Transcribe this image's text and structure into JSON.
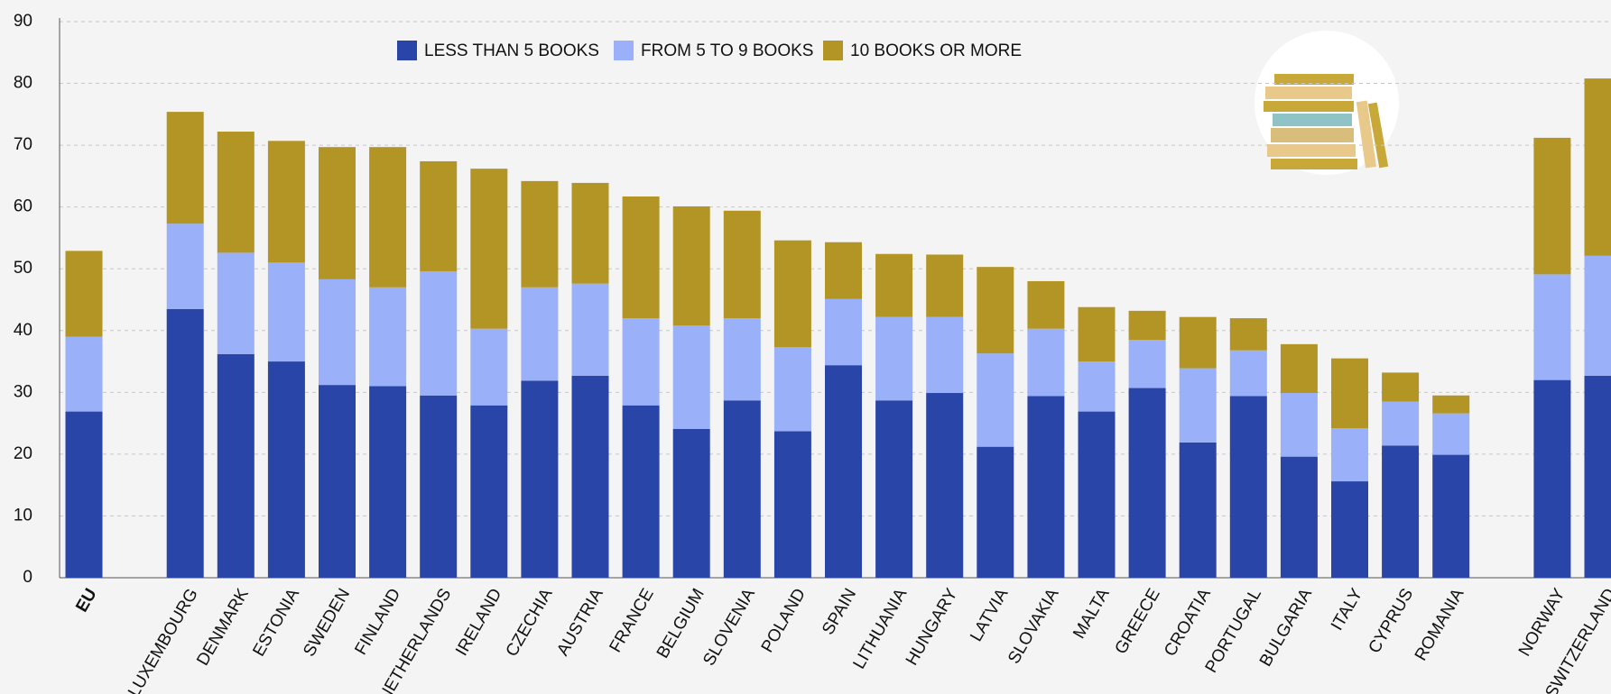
{
  "chart_data": {
    "type": "stacked_bar",
    "categories": [
      "EU",
      null,
      "LUXEMBOURG",
      "DENMARK",
      "ESTONIA",
      "SWEDEN",
      "FINLAND",
      "NETHERLANDS",
      "IRELAND",
      "CZECHIA",
      "AUSTRIA",
      "FRANCE",
      "BELGIUM",
      "SLOVENIA",
      "POLAND",
      "SPAIN",
      "LITHUANIA",
      "HUNGARY",
      "LATVIA",
      "SLOVAKIA",
      "MALTA",
      "GREECE",
      "CROATIA",
      "PORTUGAL",
      "BULGARIA",
      "ITALY",
      "CYPRUS",
      "ROMANIA",
      null,
      "NORWAY",
      "SWITZERLAND"
    ],
    "series": [
      {
        "name": "LESS THAN 5 BOOKS",
        "color": "#2a45a8",
        "values": [
          26.9,
          null,
          43.5,
          36.2,
          35.0,
          31.2,
          31.0,
          29.5,
          27.9,
          31.9,
          32.7,
          27.9,
          24.1,
          28.7,
          23.7,
          34.4,
          28.7,
          29.9,
          21.2,
          29.4,
          26.9,
          30.7,
          21.9,
          29.4,
          19.6,
          15.6,
          21.4,
          19.9,
          null,
          32.0,
          32.7
        ]
      },
      {
        "name": "FROM 5 TO 9 BOOKS",
        "color": "#9ab0f8",
        "values": [
          12.1,
          null,
          13.8,
          16.4,
          16.0,
          17.1,
          16.0,
          20.1,
          12.4,
          15.1,
          14.9,
          14.1,
          16.7,
          13.3,
          13.6,
          10.7,
          13.5,
          12.3,
          15.1,
          10.9,
          8.1,
          7.8,
          12.0,
          7.4,
          10.3,
          8.6,
          7.1,
          6.7,
          null,
          17.1,
          19.4
        ]
      },
      {
        "name": "10 BOOKS OR MORE",
        "color": "#b39526",
        "values": [
          13.9,
          null,
          18.1,
          19.6,
          19.7,
          21.4,
          22.7,
          17.8,
          25.9,
          17.2,
          16.3,
          19.7,
          19.3,
          17.4,
          17.3,
          9.2,
          10.2,
          10.1,
          14.0,
          7.7,
          8.8,
          4.7,
          8.3,
          5.2,
          7.9,
          11.3,
          4.7,
          2.9,
          null,
          22.1,
          28.7
        ]
      }
    ],
    "ylim": [
      0,
      90
    ],
    "yticks": [
      0,
      10,
      20,
      30,
      40,
      50,
      60,
      70,
      80,
      90
    ],
    "grid": true
  }
}
